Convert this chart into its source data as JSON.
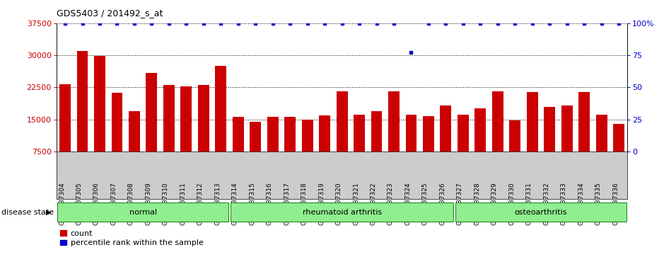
{
  "title": "GDS5403 / 201492_s_at",
  "samples": [
    "GSM1337304",
    "GSM1337305",
    "GSM1337306",
    "GSM1337307",
    "GSM1337308",
    "GSM1337309",
    "GSM1337310",
    "GSM1337311",
    "GSM1337312",
    "GSM1337313",
    "GSM1337314",
    "GSM1337315",
    "GSM1337316",
    "GSM1337317",
    "GSM1337318",
    "GSM1337319",
    "GSM1337320",
    "GSM1337321",
    "GSM1337322",
    "GSM1337323",
    "GSM1337324",
    "GSM1337325",
    "GSM1337326",
    "GSM1337327",
    "GSM1337328",
    "GSM1337329",
    "GSM1337330",
    "GSM1337331",
    "GSM1337332",
    "GSM1337333",
    "GSM1337334",
    "GSM1337335",
    "GSM1337336"
  ],
  "counts": [
    23200,
    31000,
    29800,
    21200,
    17000,
    25800,
    23100,
    22700,
    23000,
    27500,
    15700,
    14500,
    15700,
    15700,
    14900,
    15900,
    21600,
    16200,
    17000,
    21600,
    16100,
    15800,
    18200,
    16200,
    17600,
    21500,
    14800,
    21400,
    18000,
    18300,
    21400,
    16100,
    13900
  ],
  "percentile_ranks": [
    100,
    100,
    100,
    100,
    100,
    100,
    100,
    100,
    100,
    100,
    100,
    100,
    100,
    100,
    100,
    100,
    100,
    100,
    100,
    100,
    77,
    100,
    100,
    100,
    100,
    100,
    100,
    100,
    100,
    100,
    100,
    100,
    100
  ],
  "group_boundaries": [
    {
      "label": "normal",
      "start": 0,
      "end": 9
    },
    {
      "label": "rheumatoid arthritis",
      "start": 10,
      "end": 22
    },
    {
      "label": "osteoarthritis",
      "start": 23,
      "end": 32
    }
  ],
  "bar_color": "#cc0000",
  "dot_color": "#0000cc",
  "ylim_left": [
    7500,
    37500
  ],
  "yticks_left": [
    7500,
    15000,
    22500,
    30000,
    37500
  ],
  "ylim_right": [
    0,
    100
  ],
  "yticks_right": [
    0,
    25,
    50,
    75,
    100
  ],
  "group_color": "#90ee90",
  "group_border_color": "#228B22",
  "bg_color": "#ffffff",
  "xticklabel_bg": "#cccccc"
}
